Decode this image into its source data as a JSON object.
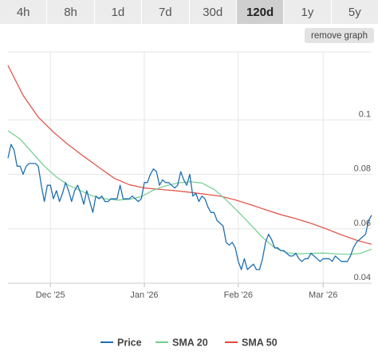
{
  "tabs": [
    {
      "label": "4h"
    },
    {
      "label": "8h"
    },
    {
      "label": "1d"
    },
    {
      "label": "7d"
    },
    {
      "label": "30d"
    },
    {
      "label": "120d",
      "active": true
    },
    {
      "label": "1y"
    },
    {
      "label": "5y"
    }
  ],
  "remove_graph_label": "remove graph",
  "chart_data": {
    "type": "line",
    "x_ticks": [
      "Dec '25",
      "Jan '26",
      "Feb '26",
      "Mar '26"
    ],
    "y_ticks": [
      "0.04",
      "0.06",
      "0.08",
      "0.1"
    ],
    "ylim": [
      0.04,
      0.125
    ],
    "xlim": [
      0,
      120
    ],
    "x_tick_positions": [
      14,
      45,
      76,
      104
    ],
    "grid": true,
    "legend_position": "bottom",
    "series": [
      {
        "name": "Price",
        "color": "#1f6fb2",
        "x": [
          0,
          1,
          2,
          3,
          4,
          5,
          6,
          7,
          8,
          9,
          10,
          11,
          12,
          13,
          14,
          15,
          16,
          17,
          18,
          19,
          20,
          21,
          22,
          23,
          24,
          25,
          26,
          27,
          28,
          29,
          30,
          31,
          32,
          33,
          34,
          35,
          36,
          37,
          38,
          39,
          40,
          41,
          42,
          43,
          44,
          45,
          46,
          47,
          48,
          49,
          50,
          51,
          52,
          53,
          54,
          55,
          56,
          57,
          58,
          59,
          60,
          61,
          62,
          63,
          64,
          65,
          66,
          67,
          68,
          69,
          70,
          71,
          72,
          73,
          74,
          75,
          76,
          77,
          78,
          79,
          80,
          81,
          82,
          83,
          84,
          85,
          86,
          87,
          88,
          89,
          90,
          91,
          92,
          93,
          94,
          95,
          96,
          97,
          98,
          99,
          100,
          101,
          102,
          103,
          104,
          105,
          106,
          107,
          108,
          109,
          110,
          111,
          112,
          113,
          114,
          115,
          116,
          117,
          118,
          119,
          120
        ],
        "values": [
          0.086,
          0.091,
          0.089,
          0.083,
          0.083,
          0.08,
          0.083,
          0.084,
          0.084,
          0.084,
          0.083,
          0.076,
          0.07,
          0.076,
          0.076,
          0.071,
          0.074,
          0.07,
          0.073,
          0.077,
          0.074,
          0.07,
          0.074,
          0.076,
          0.073,
          0.069,
          0.074,
          0.07,
          0.066,
          0.072,
          0.071,
          0.072,
          0.07,
          0.07,
          0.071,
          0.071,
          0.071,
          0.076,
          0.071,
          0.071,
          0.071,
          0.072,
          0.071,
          0.07,
          0.071,
          0.077,
          0.077,
          0.08,
          0.082,
          0.081,
          0.076,
          0.078,
          0.077,
          0.077,
          0.076,
          0.075,
          0.076,
          0.081,
          0.078,
          0.076,
          0.08,
          0.072,
          0.073,
          0.07,
          0.072,
          0.071,
          0.068,
          0.066,
          0.066,
          0.063,
          0.062,
          0.061,
          0.055,
          0.054,
          0.055,
          0.053,
          0.048,
          0.045,
          0.049,
          0.045,
          0.046,
          0.047,
          0.045,
          0.045,
          0.049,
          0.055,
          0.058,
          0.056,
          0.053,
          0.053,
          0.052,
          0.052,
          0.051,
          0.05,
          0.05,
          0.051,
          0.049,
          0.048,
          0.049,
          0.049,
          0.051,
          0.05,
          0.049,
          0.048,
          0.049,
          0.049,
          0.049,
          0.048,
          0.05,
          0.049,
          0.048,
          0.048,
          0.048,
          0.05,
          0.053,
          0.055,
          0.056,
          0.057,
          0.058,
          0.063,
          0.065
        ]
      },
      {
        "name": "SMA 20",
        "color": "#6fcf8e",
        "x": [
          0,
          4,
          8,
          12,
          16,
          20,
          24,
          28,
          32,
          36,
          40,
          44,
          48,
          52,
          56,
          60,
          64,
          68,
          72,
          76,
          80,
          84,
          88,
          92,
          96,
          100,
          104,
          108,
          112,
          116,
          120
        ],
        "values": [
          0.096,
          0.093,
          0.088,
          0.083,
          0.079,
          0.076,
          0.074,
          0.072,
          0.071,
          0.0705,
          0.0708,
          0.0718,
          0.0742,
          0.0758,
          0.0768,
          0.0773,
          0.0768,
          0.0745,
          0.0706,
          0.0662,
          0.0616,
          0.0568,
          0.053,
          0.0512,
          0.0508,
          0.051,
          0.0511,
          0.0508,
          0.0506,
          0.0509,
          0.0525
        ]
      },
      {
        "name": "SMA 50",
        "color": "#e24a3f",
        "x": [
          0,
          5,
          10,
          15,
          20,
          25,
          30,
          35,
          40,
          45,
          50,
          55,
          60,
          65,
          70,
          75,
          80,
          85,
          90,
          95,
          100,
          105,
          110,
          115,
          120
        ],
        "values": [
          0.12,
          0.109,
          0.101,
          0.0955,
          0.0908,
          0.0866,
          0.0826,
          0.0786,
          0.0762,
          0.075,
          0.0745,
          0.074,
          0.0734,
          0.0727,
          0.072,
          0.0706,
          0.0689,
          0.067,
          0.0652,
          0.0637,
          0.062,
          0.06,
          0.0578,
          0.0558,
          0.0543
        ]
      }
    ]
  }
}
